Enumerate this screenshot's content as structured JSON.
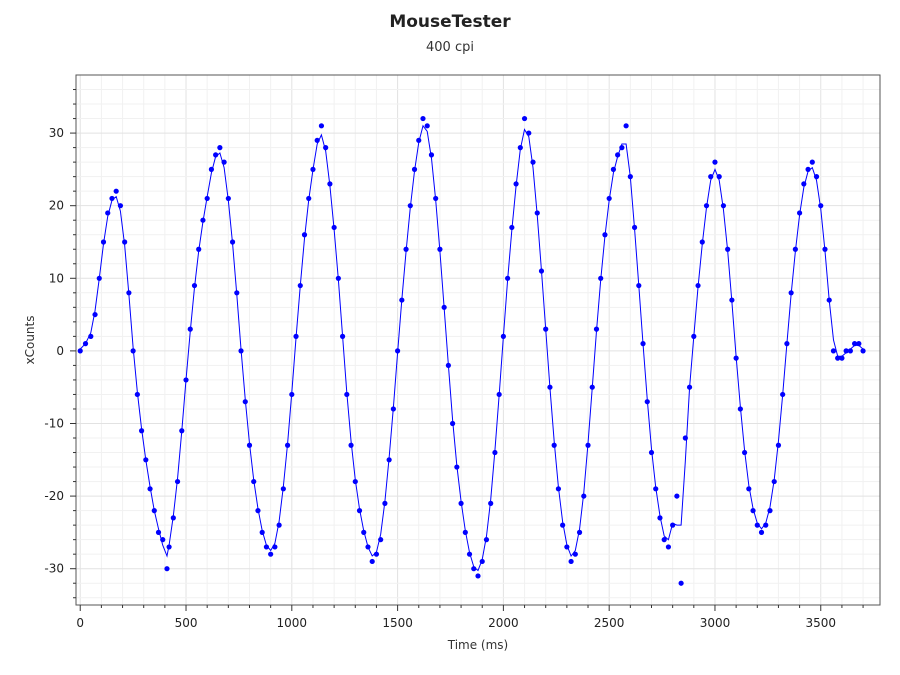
{
  "chart_data": {
    "type": "scatter",
    "title": "MouseTester",
    "subtitle": "400 cpi",
    "xlabel": "Time (ms)",
    "ylabel": "xCounts",
    "xlim": [
      -20,
      3780
    ],
    "ylim": [
      -35,
      38
    ],
    "xticks": [
      0,
      500,
      1000,
      1500,
      2000,
      2500,
      3000,
      3500
    ],
    "yticks": [
      -30,
      -20,
      -10,
      0,
      10,
      20,
      30
    ],
    "grid": true,
    "legend": "none",
    "series": [
      {
        "marker": "circle",
        "line": "smoothed",
        "color": "#0000ff",
        "points": [
          [
            0,
            0
          ],
          [
            25,
            1
          ],
          [
            50,
            2
          ],
          [
            70,
            5
          ],
          [
            90,
            10
          ],
          [
            110,
            15
          ],
          [
            130,
            19
          ],
          [
            150,
            21
          ],
          [
            170,
            22
          ],
          [
            190,
            20
          ],
          [
            210,
            15
          ],
          [
            230,
            8
          ],
          [
            250,
            0
          ],
          [
            270,
            -6
          ],
          [
            290,
            -11
          ],
          [
            310,
            -15
          ],
          [
            330,
            -19
          ],
          [
            350,
            -22
          ],
          [
            370,
            -25
          ],
          [
            390,
            -26
          ],
          [
            410,
            -30
          ],
          [
            420,
            -27
          ],
          [
            440,
            -23
          ],
          [
            460,
            -18
          ],
          [
            480,
            -11
          ],
          [
            500,
            -4
          ],
          [
            520,
            3
          ],
          [
            540,
            9
          ],
          [
            560,
            14
          ],
          [
            580,
            18
          ],
          [
            600,
            21
          ],
          [
            620,
            25
          ],
          [
            640,
            27
          ],
          [
            660,
            28
          ],
          [
            680,
            26
          ],
          [
            700,
            21
          ],
          [
            720,
            15
          ],
          [
            740,
            8
          ],
          [
            760,
            0
          ],
          [
            780,
            -7
          ],
          [
            800,
            -13
          ],
          [
            820,
            -18
          ],
          [
            840,
            -22
          ],
          [
            860,
            -25
          ],
          [
            880,
            -27
          ],
          [
            900,
            -28
          ],
          [
            920,
            -27
          ],
          [
            940,
            -24
          ],
          [
            960,
            -19
          ],
          [
            980,
            -13
          ],
          [
            1000,
            -6
          ],
          [
            1020,
            2
          ],
          [
            1040,
            9
          ],
          [
            1060,
            16
          ],
          [
            1080,
            21
          ],
          [
            1100,
            25
          ],
          [
            1120,
            29
          ],
          [
            1140,
            31
          ],
          [
            1160,
            28
          ],
          [
            1180,
            23
          ],
          [
            1200,
            17
          ],
          [
            1220,
            10
          ],
          [
            1240,
            2
          ],
          [
            1260,
            -6
          ],
          [
            1280,
            -13
          ],
          [
            1300,
            -18
          ],
          [
            1320,
            -22
          ],
          [
            1340,
            -25
          ],
          [
            1360,
            -27
          ],
          [
            1380,
            -29
          ],
          [
            1400,
            -28
          ],
          [
            1420,
            -26
          ],
          [
            1440,
            -21
          ],
          [
            1460,
            -15
          ],
          [
            1480,
            -8
          ],
          [
            1500,
            0
          ],
          [
            1520,
            7
          ],
          [
            1540,
            14
          ],
          [
            1560,
            20
          ],
          [
            1580,
            25
          ],
          [
            1600,
            29
          ],
          [
            1620,
            32
          ],
          [
            1640,
            31
          ],
          [
            1660,
            27
          ],
          [
            1680,
            21
          ],
          [
            1700,
            14
          ],
          [
            1720,
            6
          ],
          [
            1740,
            -2
          ],
          [
            1760,
            -10
          ],
          [
            1780,
            -16
          ],
          [
            1800,
            -21
          ],
          [
            1820,
            -25
          ],
          [
            1840,
            -28
          ],
          [
            1860,
            -30
          ],
          [
            1880,
            -31
          ],
          [
            1900,
            -29
          ],
          [
            1920,
            -26
          ],
          [
            1940,
            -21
          ],
          [
            1960,
            -14
          ],
          [
            1980,
            -6
          ],
          [
            2000,
            2
          ],
          [
            2020,
            10
          ],
          [
            2040,
            17
          ],
          [
            2060,
            23
          ],
          [
            2080,
            28
          ],
          [
            2100,
            32
          ],
          [
            2120,
            30
          ],
          [
            2140,
            26
          ],
          [
            2160,
            19
          ],
          [
            2180,
            11
          ],
          [
            2200,
            3
          ],
          [
            2220,
            -5
          ],
          [
            2240,
            -13
          ],
          [
            2260,
            -19
          ],
          [
            2280,
            -24
          ],
          [
            2300,
            -27
          ],
          [
            2320,
            -29
          ],
          [
            2340,
            -28
          ],
          [
            2360,
            -25
          ],
          [
            2380,
            -20
          ],
          [
            2400,
            -13
          ],
          [
            2420,
            -5
          ],
          [
            2440,
            3
          ],
          [
            2460,
            10
          ],
          [
            2480,
            16
          ],
          [
            2500,
            21
          ],
          [
            2520,
            25
          ],
          [
            2540,
            27
          ],
          [
            2560,
            28
          ],
          [
            2580,
            31
          ],
          [
            2600,
            24
          ],
          [
            2620,
            17
          ],
          [
            2640,
            9
          ],
          [
            2660,
            1
          ],
          [
            2680,
            -7
          ],
          [
            2700,
            -14
          ],
          [
            2720,
            -19
          ],
          [
            2740,
            -23
          ],
          [
            2760,
            -26
          ],
          [
            2780,
            -27
          ],
          [
            2800,
            -24
          ],
          [
            2820,
            -20
          ],
          [
            2840,
            -32
          ],
          [
            2860,
            -12
          ],
          [
            2880,
            -5
          ],
          [
            2900,
            2
          ],
          [
            2920,
            9
          ],
          [
            2940,
            15
          ],
          [
            2960,
            20
          ],
          [
            2980,
            24
          ],
          [
            3000,
            26
          ],
          [
            3020,
            24
          ],
          [
            3040,
            20
          ],
          [
            3060,
            14
          ],
          [
            3080,
            7
          ],
          [
            3100,
            -1
          ],
          [
            3120,
            -8
          ],
          [
            3140,
            -14
          ],
          [
            3160,
            -19
          ],
          [
            3180,
            -22
          ],
          [
            3200,
            -24
          ],
          [
            3220,
            -25
          ],
          [
            3240,
            -24
          ],
          [
            3260,
            -22
          ],
          [
            3280,
            -18
          ],
          [
            3300,
            -13
          ],
          [
            3320,
            -6
          ],
          [
            3340,
            1
          ],
          [
            3360,
            8
          ],
          [
            3380,
            14
          ],
          [
            3400,
            19
          ],
          [
            3420,
            23
          ],
          [
            3440,
            25
          ],
          [
            3460,
            26
          ],
          [
            3480,
            24
          ],
          [
            3500,
            20
          ],
          [
            3520,
            14
          ],
          [
            3540,
            7
          ],
          [
            3560,
            0
          ],
          [
            3580,
            -1
          ],
          [
            3600,
            -1
          ],
          [
            3620,
            0
          ],
          [
            3640,
            0
          ],
          [
            3660,
            1
          ],
          [
            3680,
            1
          ],
          [
            3700,
            0
          ]
        ]
      }
    ]
  }
}
